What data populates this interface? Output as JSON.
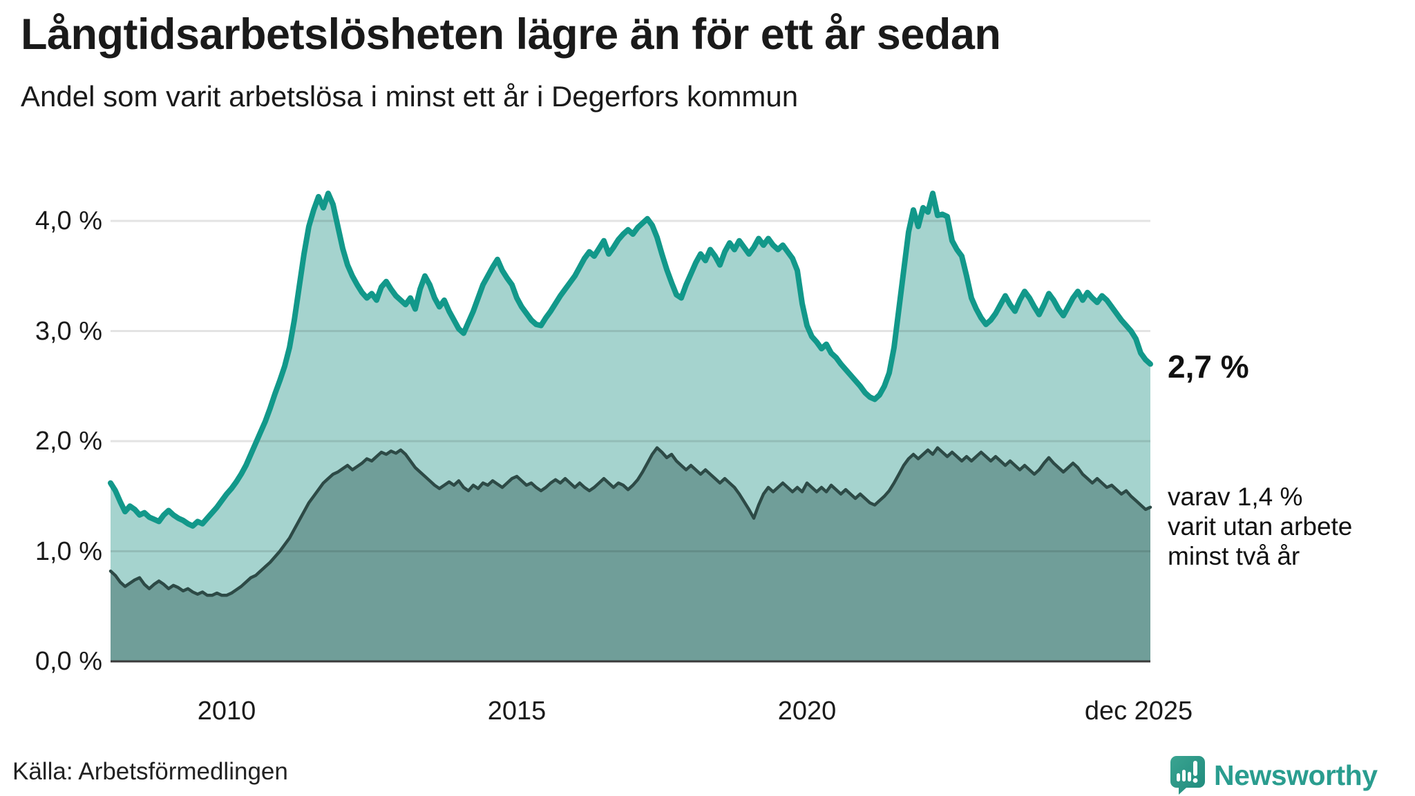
{
  "header": {
    "title": "Långtidsarbetslösheten lägre än för ett år sedan",
    "subtitle": "Andel som varit arbetslösa i minst ett år i Degerfors kommun"
  },
  "annotations": {
    "latest_total": "2,7 %",
    "secondary_line1": "varav 1,4 %",
    "secondary_line2": "varit utan arbete",
    "secondary_line3": "minst två år"
  },
  "source": {
    "label": "Källa: Arbetsförmedlingen"
  },
  "branding": {
    "name": "Newsworthy",
    "color": "#2a9d8f"
  },
  "colors": {
    "series1_line": "#12988a",
    "series1_fill": "#a5d3ce",
    "series2_line": "#2d4a46",
    "series2_fill": "#709e99",
    "gridline": "#e3e3e3",
    "baseline": "#3a3a3a",
    "text": "#1a1a1a"
  },
  "chart_data": {
    "type": "area",
    "title": "Långtidsarbetslösheten lägre än för ett år sedan",
    "subtitle": "Andel som varit arbetslösa i minst ett år i Degerfors kommun",
    "unit": "%",
    "x_start": "2008-01",
    "x_end": "2025-12",
    "x_interval": "monthly",
    "ylim": [
      0,
      4.4
    ],
    "grid": true,
    "legend_position": "none",
    "y_ticks": [
      {
        "label": "0,0 %",
        "value": 0
      },
      {
        "label": "1,0 %",
        "value": 1
      },
      {
        "label": "2,0 %",
        "value": 2
      },
      {
        "label": "3,0 %",
        "value": 3
      },
      {
        "label": "4,0 %",
        "value": 4
      }
    ],
    "x_ticks": [
      {
        "label": "2010",
        "year": 2010.0
      },
      {
        "label": "2015",
        "year": 2015.0
      },
      {
        "label": "2020",
        "year": 2020.0
      },
      {
        "label": "dec 2025",
        "year": 2025.92
      }
    ],
    "series": [
      {
        "name": "Arbetslösa minst ett år",
        "end_value_label": "2,7 %",
        "values": [
          1.62,
          1.55,
          1.45,
          1.36,
          1.41,
          1.38,
          1.33,
          1.35,
          1.31,
          1.29,
          1.27,
          1.33,
          1.37,
          1.33,
          1.3,
          1.28,
          1.25,
          1.23,
          1.27,
          1.25,
          1.3,
          1.35,
          1.4,
          1.46,
          1.52,
          1.57,
          1.63,
          1.7,
          1.78,
          1.88,
          1.98,
          2.08,
          2.18,
          2.3,
          2.43,
          2.55,
          2.68,
          2.85,
          3.1,
          3.4,
          3.7,
          3.95,
          4.1,
          4.22,
          4.12,
          4.25,
          4.15,
          3.95,
          3.75,
          3.6,
          3.5,
          3.42,
          3.35,
          3.3,
          3.34,
          3.28,
          3.4,
          3.45,
          3.38,
          3.32,
          3.28,
          3.24,
          3.3,
          3.2,
          3.38,
          3.5,
          3.42,
          3.3,
          3.22,
          3.28,
          3.18,
          3.1,
          3.02,
          2.98,
          3.08,
          3.18,
          3.3,
          3.42,
          3.5,
          3.58,
          3.65,
          3.55,
          3.48,
          3.42,
          3.3,
          3.22,
          3.16,
          3.1,
          3.06,
          3.05,
          3.12,
          3.18,
          3.25,
          3.32,
          3.38,
          3.44,
          3.5,
          3.58,
          3.66,
          3.72,
          3.68,
          3.75,
          3.82,
          3.7,
          3.76,
          3.83,
          3.88,
          3.92,
          3.88,
          3.94,
          3.98,
          4.02,
          3.96,
          3.85,
          3.7,
          3.56,
          3.44,
          3.33,
          3.3,
          3.42,
          3.52,
          3.62,
          3.7,
          3.64,
          3.74,
          3.68,
          3.6,
          3.72,
          3.8,
          3.74,
          3.82,
          3.76,
          3.7,
          3.76,
          3.84,
          3.78,
          3.84,
          3.78,
          3.74,
          3.78,
          3.72,
          3.66,
          3.55,
          3.25,
          3.05,
          2.95,
          2.9,
          2.84,
          2.88,
          2.8,
          2.76,
          2.7,
          2.65,
          2.6,
          2.55,
          2.5,
          2.44,
          2.4,
          2.38,
          2.42,
          2.5,
          2.62,
          2.85,
          3.2,
          3.55,
          3.9,
          4.1,
          3.95,
          4.12,
          4.08,
          4.25,
          4.05,
          4.06,
          4.04,
          3.82,
          3.74,
          3.68,
          3.5,
          3.3,
          3.2,
          3.12,
          3.06,
          3.1,
          3.16,
          3.24,
          3.32,
          3.24,
          3.18,
          3.28,
          3.36,
          3.3,
          3.22,
          3.15,
          3.24,
          3.34,
          3.28,
          3.2,
          3.14,
          3.22,
          3.3,
          3.36,
          3.28,
          3.35,
          3.3,
          3.26,
          3.32,
          3.28,
          3.22,
          3.16,
          3.1,
          3.05,
          3.0,
          2.93,
          2.8,
          2.74,
          2.7
        ]
      },
      {
        "name": "Arbetslösa minst två år",
        "end_value_label": "1,4 %",
        "values": [
          0.82,
          0.78,
          0.72,
          0.68,
          0.71,
          0.74,
          0.76,
          0.7,
          0.66,
          0.7,
          0.73,
          0.7,
          0.66,
          0.69,
          0.67,
          0.64,
          0.66,
          0.63,
          0.61,
          0.63,
          0.6,
          0.6,
          0.62,
          0.6,
          0.6,
          0.62,
          0.65,
          0.68,
          0.72,
          0.76,
          0.78,
          0.82,
          0.86,
          0.9,
          0.95,
          1.0,
          1.06,
          1.12,
          1.2,
          1.28,
          1.36,
          1.44,
          1.5,
          1.56,
          1.62,
          1.66,
          1.7,
          1.72,
          1.75,
          1.78,
          1.74,
          1.77,
          1.8,
          1.84,
          1.82,
          1.86,
          1.9,
          1.88,
          1.91,
          1.89,
          1.92,
          1.88,
          1.82,
          1.76,
          1.72,
          1.68,
          1.64,
          1.6,
          1.57,
          1.6,
          1.63,
          1.6,
          1.64,
          1.58,
          1.55,
          1.6,
          1.57,
          1.62,
          1.6,
          1.64,
          1.61,
          1.58,
          1.62,
          1.66,
          1.68,
          1.64,
          1.6,
          1.62,
          1.58,
          1.55,
          1.58,
          1.62,
          1.65,
          1.62,
          1.66,
          1.62,
          1.58,
          1.62,
          1.58,
          1.55,
          1.58,
          1.62,
          1.66,
          1.62,
          1.58,
          1.62,
          1.6,
          1.56,
          1.6,
          1.65,
          1.72,
          1.8,
          1.88,
          1.94,
          1.9,
          1.85,
          1.88,
          1.82,
          1.78,
          1.74,
          1.78,
          1.74,
          1.7,
          1.74,
          1.7,
          1.66,
          1.62,
          1.66,
          1.62,
          1.58,
          1.52,
          1.45,
          1.38,
          1.3,
          1.42,
          1.52,
          1.58,
          1.54,
          1.58,
          1.62,
          1.58,
          1.54,
          1.58,
          1.54,
          1.62,
          1.58,
          1.54,
          1.58,
          1.54,
          1.6,
          1.56,
          1.52,
          1.56,
          1.52,
          1.48,
          1.52,
          1.48,
          1.44,
          1.42,
          1.46,
          1.5,
          1.55,
          1.62,
          1.7,
          1.78,
          1.84,
          1.88,
          1.84,
          1.88,
          1.92,
          1.88,
          1.94,
          1.9,
          1.86,
          1.9,
          1.86,
          1.82,
          1.86,
          1.82,
          1.86,
          1.9,
          1.86,
          1.82,
          1.86,
          1.82,
          1.78,
          1.82,
          1.78,
          1.74,
          1.78,
          1.74,
          1.7,
          1.74,
          1.8,
          1.85,
          1.8,
          1.76,
          1.72,
          1.76,
          1.8,
          1.76,
          1.7,
          1.66,
          1.62,
          1.66,
          1.62,
          1.58,
          1.6,
          1.56,
          1.52,
          1.55,
          1.5,
          1.46,
          1.42,
          1.38,
          1.4
        ]
      }
    ]
  }
}
